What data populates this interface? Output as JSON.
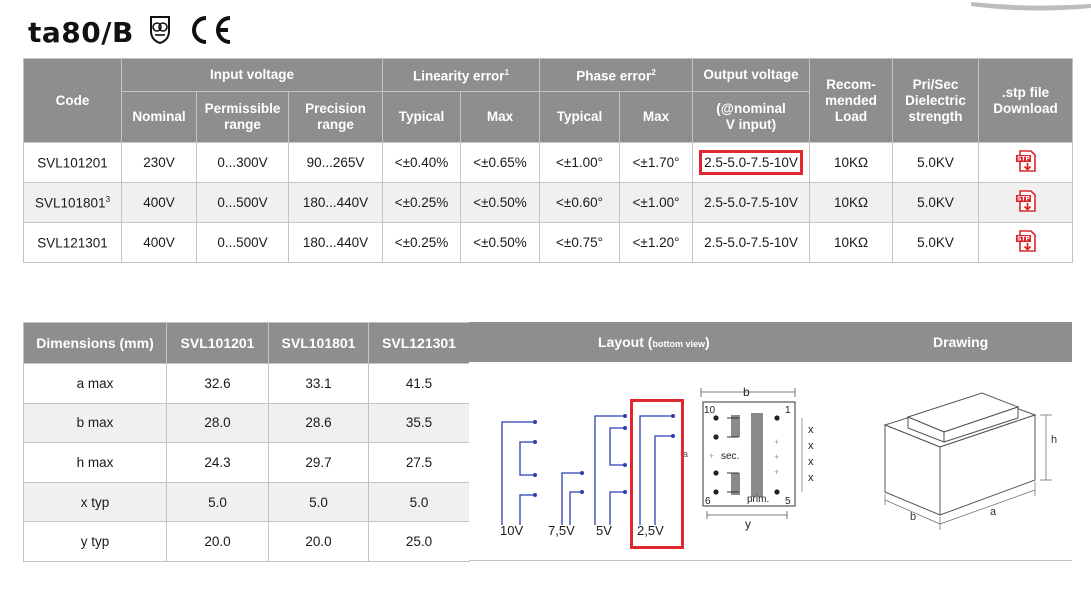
{
  "title": "ta80/B",
  "logos": {
    "cert_mark_icon": "safety-transformer-icon",
    "ce_mark": "CE"
  },
  "table1": {
    "headers": {
      "code": "Code",
      "input_voltage": "Input voltage",
      "nominal": "Nominal",
      "permissible_range_line1": "Permissible",
      "permissible_range_line2": "range",
      "precision_range_line1": "Precision",
      "precision_range_line2": "range",
      "linearity_error": "Linearity error",
      "linearity_sup": "1",
      "phase_error": "Phase error",
      "phase_sup": "2",
      "typical": "Typical",
      "max": "Max",
      "output_voltage": "Output voltage",
      "output_sub_line1": "(@nominal",
      "output_sub_line2": "V input)",
      "recommended_line1": "Recom-",
      "recommended_line2": "mended",
      "recommended_line3": "Load",
      "prisec_line1": "Pri/Sec",
      "prisec_line2": "Dielectric",
      "prisec_line3": "strength",
      "stp_line1": ".stp file",
      "stp_line2": "Download"
    },
    "rows": [
      {
        "code": "SVL101201",
        "code_sup": "",
        "nominal": "230V",
        "permissible": "0...300V",
        "precision": "90...265V",
        "lin_typ": "<±0.40%",
        "lin_max": "<±0.65%",
        "phase_typ": "<±1.00°",
        "phase_max": "<±1.70°",
        "output": "2.5-5.0-7.5-10V",
        "load": "10KΩ",
        "dielectric": "5.0KV",
        "stp_label": "STP"
      },
      {
        "code": "SVL101801",
        "code_sup": "3",
        "nominal": "400V",
        "permissible": "0...500V",
        "precision": "180...440V",
        "lin_typ": "<±0.25%",
        "lin_max": "<±0.50%",
        "phase_typ": "<±0.60°",
        "phase_max": "<±1.00°",
        "output": "2.5-5.0-7.5-10V",
        "load": "10KΩ",
        "dielectric": "5.0KV",
        "stp_label": "STP"
      },
      {
        "code": "SVL121301",
        "code_sup": "",
        "nominal": "400V",
        "permissible": "0...500V",
        "precision": "180...440V",
        "lin_typ": "<±0.25%",
        "lin_max": "<±0.50%",
        "phase_typ": "<±0.75°",
        "phase_max": "<±1.20°",
        "output": "2.5-5.0-7.5-10V",
        "load": "10KΩ",
        "dielectric": "5.0KV",
        "stp_label": "STP"
      }
    ]
  },
  "table2": {
    "headers": [
      "Dimensions (mm)",
      "SVL101201",
      "SVL101801",
      "SVL121301"
    ],
    "rows": [
      [
        "a max",
        "32.6",
        "33.1",
        "41.5"
      ],
      [
        "b max",
        "28.0",
        "28.6",
        "35.5"
      ],
      [
        "h max",
        "24.3",
        "29.7",
        "27.5"
      ],
      [
        "x typ",
        "5.0",
        "5.0",
        "5.0"
      ],
      [
        "y typ",
        "20.0",
        "20.0",
        "25.0"
      ]
    ]
  },
  "layout_panel": {
    "header": "Layout (",
    "header_small": "bottom view",
    "header_close": ")",
    "drawing_header": "Drawing",
    "voltage_labels": [
      "10V",
      "7,5V",
      "5V",
      "2,5V"
    ],
    "pin_10": "10",
    "pin_1": "1",
    "pin_6": "6",
    "pin_5": "5",
    "sec_label": "sec.",
    "prim_label": "prim.",
    "dim_b": "b",
    "dim_y": "y",
    "dim_x": "x",
    "dim_a": "a",
    "dim_h": "h"
  },
  "colors": {
    "header_bg": "#8e8e8e",
    "highlight": "#e0282e",
    "wire": "#2b3fb0"
  }
}
